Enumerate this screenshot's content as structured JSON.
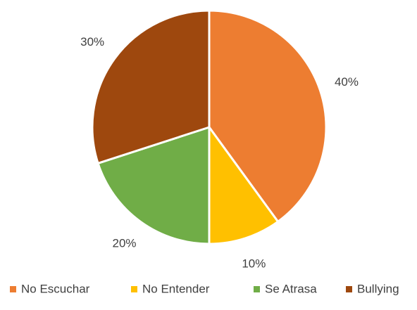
{
  "chart_data": {
    "type": "pie",
    "categories": [
      "No Escuchar",
      "No Entender",
      "Se Atrasa",
      "Bullying"
    ],
    "values": [
      40,
      10,
      20,
      30
    ],
    "labels": [
      "40%",
      "10%",
      "20%",
      "30%"
    ],
    "colors": [
      "#ED7D31",
      "#FFC000",
      "#70AD47",
      "#9E480E"
    ],
    "start_angle_deg": 0,
    "direction": "clockwise",
    "legend_position": "bottom",
    "title": ""
  }
}
